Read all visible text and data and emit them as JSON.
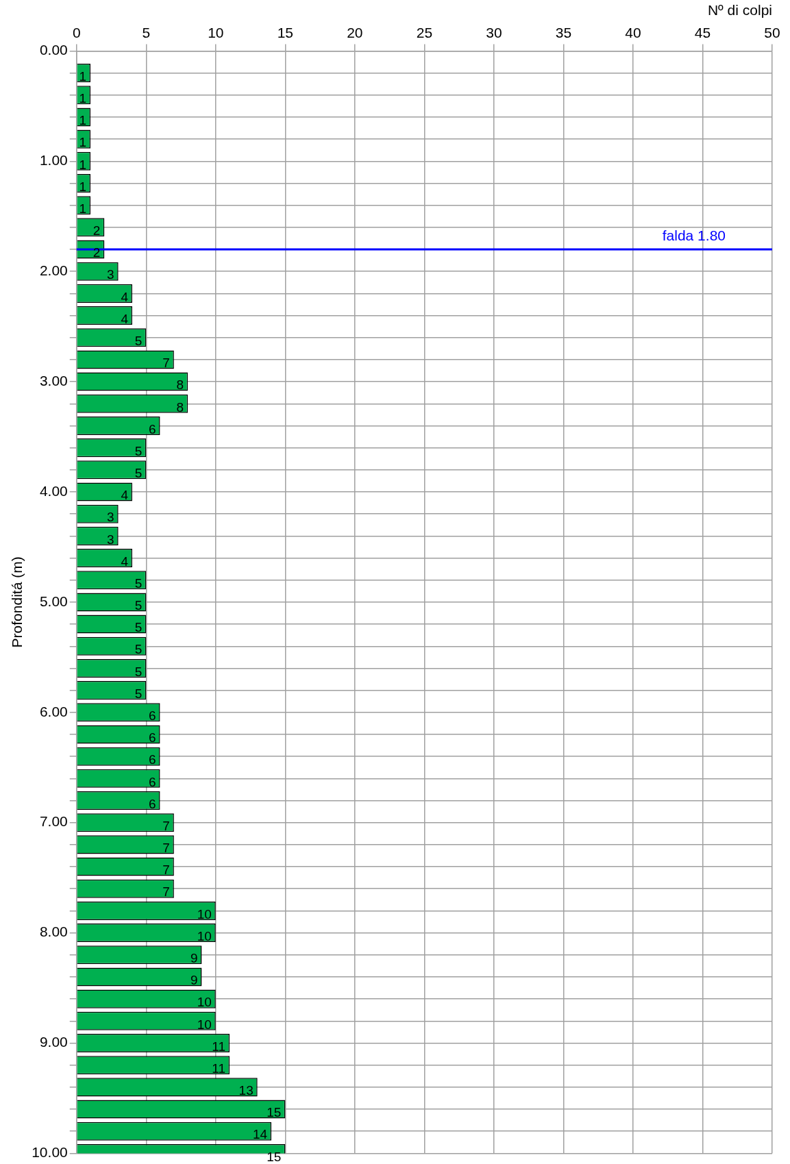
{
  "chart_data": {
    "type": "bar",
    "orientation": "horizontal",
    "xlabel": "Nº di colpi",
    "ylabel": "Profonditá (m)",
    "x": [
      0.2,
      0.4,
      0.6,
      0.8,
      1.0,
      1.2,
      1.4,
      1.6,
      1.8,
      2.0,
      2.2,
      2.4,
      2.6,
      2.8,
      3.0,
      3.2,
      3.4,
      3.6,
      3.8,
      4.0,
      4.2,
      4.4,
      4.6,
      4.8,
      5.0,
      5.2,
      5.4,
      5.6,
      5.8,
      6.0,
      6.2,
      6.4,
      6.6,
      6.8,
      7.0,
      7.2,
      7.4,
      7.6,
      7.8,
      8.0,
      8.2,
      8.4,
      8.6,
      8.8,
      9.0,
      9.2,
      9.4,
      9.6,
      9.8,
      10.0
    ],
    "values": [
      1,
      1,
      1,
      1,
      1,
      1,
      1,
      2,
      2,
      3,
      4,
      4,
      5,
      7,
      8,
      8,
      6,
      5,
      5,
      4,
      3,
      3,
      4,
      5,
      5,
      5,
      5,
      5,
      5,
      6,
      6,
      6,
      6,
      6,
      7,
      7,
      7,
      7,
      10,
      10,
      9,
      9,
      10,
      10,
      11,
      11,
      13,
      15,
      14,
      15
    ],
    "color": "#00b050",
    "data_labels": true,
    "xlim": [
      0,
      50
    ],
    "xticks": [
      0,
      5,
      10,
      15,
      20,
      25,
      30,
      35,
      40,
      45,
      50
    ],
    "ylim": [
      10,
      0
    ],
    "yticks": [
      {
        "value": 0,
        "label": "0.00"
      },
      {
        "value": 0.2,
        "label": null
      },
      {
        "value": 0.4,
        "label": null
      },
      {
        "value": 0.6,
        "label": null
      },
      {
        "value": 0.8,
        "label": null
      },
      {
        "value": 1,
        "label": "1.00"
      },
      {
        "value": 1.2,
        "label": null
      },
      {
        "value": 1.4,
        "label": null
      },
      {
        "value": 1.6,
        "label": null
      },
      {
        "value": 1.8,
        "label": null
      },
      {
        "value": 2,
        "label": "2.00"
      },
      {
        "value": 2.2,
        "label": null
      },
      {
        "value": 2.4,
        "label": null
      },
      {
        "value": 2.6,
        "label": null
      },
      {
        "value": 2.8,
        "label": null
      },
      {
        "value": 3,
        "label": "3.00"
      },
      {
        "value": 3.2,
        "label": null
      },
      {
        "value": 3.4,
        "label": null
      },
      {
        "value": 3.6,
        "label": null
      },
      {
        "value": 3.8,
        "label": null
      },
      {
        "value": 4,
        "label": "4.00"
      },
      {
        "value": 4.2,
        "label": null
      },
      {
        "value": 4.4,
        "label": null
      },
      {
        "value": 4.6,
        "label": null
      },
      {
        "value": 4.8,
        "label": null
      },
      {
        "value": 5,
        "label": "5.00"
      },
      {
        "value": 5.2,
        "label": null
      },
      {
        "value": 5.4,
        "label": null
      },
      {
        "value": 5.6,
        "label": null
      },
      {
        "value": 5.8,
        "label": null
      },
      {
        "value": 6,
        "label": "6.00"
      },
      {
        "value": 6.2,
        "label": null
      },
      {
        "value": 6.4,
        "label": null
      },
      {
        "value": 6.6,
        "label": null
      },
      {
        "value": 6.8,
        "label": null
      },
      {
        "value": 7,
        "label": "7.00"
      },
      {
        "value": 7.2,
        "label": null
      },
      {
        "value": 7.4,
        "label": null
      },
      {
        "value": 7.6,
        "label": null
      },
      {
        "value": 7.8,
        "label": null
      },
      {
        "value": 8,
        "label": "8.00"
      },
      {
        "value": 8.2,
        "label": null
      },
      {
        "value": 8.4,
        "label": null
      },
      {
        "value": 8.6,
        "label": null
      },
      {
        "value": 8.8,
        "label": null
      },
      {
        "value": 9,
        "label": "9.00"
      },
      {
        "value": 9.2,
        "label": null
      },
      {
        "value": 9.4,
        "label": null
      },
      {
        "value": 9.6,
        "label": null
      },
      {
        "value": 9.8,
        "label": null
      },
      {
        "value": 10,
        "label": "10.00"
      }
    ],
    "grid": true,
    "ref_lines": [
      {
        "axis": "y",
        "value": 1.8,
        "label": "falda 1.80",
        "color": "#0000ff"
      }
    ]
  }
}
